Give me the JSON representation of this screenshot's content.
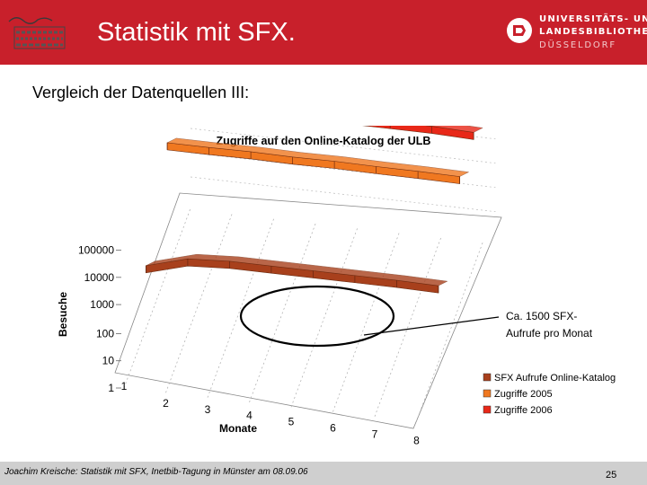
{
  "header": {
    "title": "Statistik mit SFX.",
    "logo_left_text": "Heinrich Heine Universität Düsseldorf",
    "logo_right_lines": [
      "UNIVERSITÄTS- UND",
      "LANDESBIBLIOTHEK",
      "DÜSSELDORF"
    ],
    "background": "#c8202b"
  },
  "subtitle": "Vergleich der Datenquellen III:",
  "chart_data": {
    "type": "area",
    "title": "Zugriffe auf den Online-Katalog der ULB",
    "ylabel": "Besuche",
    "xlabel": "Monate",
    "y_scale": "log",
    "y_ticks": [
      "100000",
      "10000",
      "1000",
      "100",
      "10",
      "1"
    ],
    "x": [
      1,
      2,
      3,
      4,
      5,
      6,
      7,
      8
    ],
    "series": [
      {
        "name": "SFX Aufrufe Online-Katalog",
        "color": "#a8401c",
        "values": [
          400,
          1200,
          1500,
          1500,
          1500,
          1500,
          1500,
          1400
        ]
      },
      {
        "name": "Zugriffe 2005",
        "color": "#f07820",
        "values": [
          200000,
          200000,
          210000,
          200000,
          210000,
          200000,
          200000,
          190000
        ]
      },
      {
        "name": "Zugriffe 2006",
        "color": "#e82818",
        "values": [
          400000,
          400000,
          400000,
          400000,
          400000,
          400000,
          400000,
          350000
        ]
      }
    ],
    "annotation": "Ca. 1500 SFX-\nAufrufe pro Monat",
    "legend_position": "right"
  },
  "footer": {
    "text": "Joachim Kreische: Statistik mit SFX, Inetbib-Tagung in Münster am 08.09.06",
    "page": "25"
  }
}
